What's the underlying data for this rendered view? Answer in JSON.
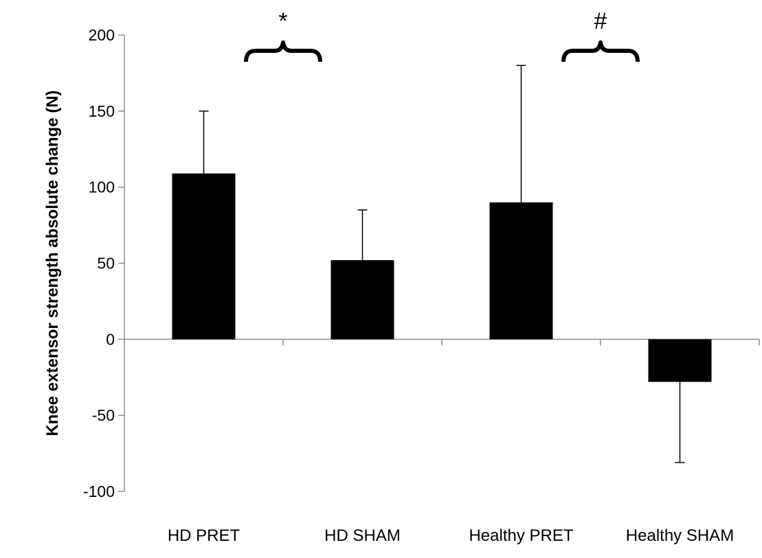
{
  "chart_data": {
    "type": "bar",
    "title": "",
    "xlabel": "",
    "ylabel": "Knee extensor strength absolute change (N)",
    "categories": [
      "HD PRET",
      "HD SHAM",
      "Healthy PRET",
      "Healthy SHAM"
    ],
    "values": [
      109,
      52,
      90,
      -28
    ],
    "error_upper": [
      150,
      85,
      180,
      null
    ],
    "error_lower": [
      null,
      null,
      null,
      -81
    ],
    "ylim": [
      -100,
      200
    ],
    "yticks": [
      -100,
      -50,
      0,
      50,
      100,
      150,
      200
    ],
    "ytick_labels": [
      "-100",
      "-50",
      "0",
      "50",
      "100",
      "150",
      "200"
    ],
    "bar_color": "#000000",
    "grid": false,
    "legend": "none",
    "annotations": [
      {
        "text": "*",
        "between": [
          "HD PRET",
          "HD SHAM"
        ]
      },
      {
        "text": "#",
        "between": [
          "Healthy PRET",
          "Healthy SHAM"
        ]
      }
    ]
  }
}
